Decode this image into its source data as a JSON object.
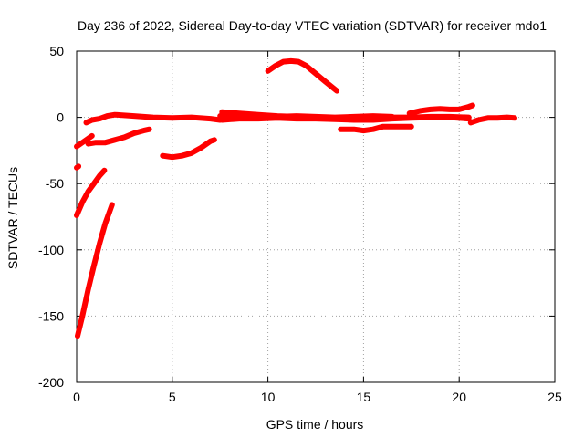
{
  "chart_data": {
    "type": "scatter",
    "title": "Day 236 of 2022, Sidereal Day-to-day VTEC variation (SDTVAR) for receiver mdo1",
    "xlabel": "GPS time / hours",
    "ylabel": "SDTVAR / TECUs",
    "xlim": [
      0,
      25
    ],
    "ylim": [
      -200,
      50
    ],
    "xticks": [
      0,
      5,
      10,
      15,
      20,
      25
    ],
    "yticks": [
      -200,
      -150,
      -100,
      -50,
      0,
      50
    ],
    "grid": true,
    "series_color": "#ff0000",
    "segments": [
      {
        "name": "arc-1",
        "points": [
          [
            0.05,
            -165
          ],
          [
            0.3,
            -150
          ],
          [
            0.6,
            -130
          ],
          [
            0.9,
            -112
          ],
          [
            1.2,
            -95
          ],
          [
            1.5,
            -80
          ],
          [
            1.85,
            -66
          ]
        ]
      },
      {
        "name": "arc-2",
        "points": [
          [
            0.0,
            -74
          ],
          [
            0.3,
            -64
          ],
          [
            0.6,
            -56
          ],
          [
            0.9,
            -50
          ],
          [
            1.2,
            -44
          ],
          [
            1.45,
            -40
          ]
        ]
      },
      {
        "name": "arc-3",
        "points": [
          [
            0.0,
            -38
          ],
          [
            0.1,
            -37
          ]
        ]
      },
      {
        "name": "arc-4",
        "points": [
          [
            0.0,
            -22
          ],
          [
            0.3,
            -19
          ],
          [
            0.6,
            -16
          ],
          [
            0.8,
            -14
          ]
        ]
      },
      {
        "name": "arc-5",
        "points": [
          [
            0.6,
            -20
          ],
          [
            1.0,
            -19
          ],
          [
            1.5,
            -19
          ],
          [
            2.0,
            -17
          ],
          [
            2.5,
            -15
          ],
          [
            3.0,
            -12
          ],
          [
            3.5,
            -10
          ],
          [
            3.8,
            -9
          ]
        ]
      },
      {
        "name": "arc-6",
        "points": [
          [
            0.5,
            -4
          ],
          [
            0.8,
            -2
          ],
          [
            1.2,
            -1
          ],
          [
            1.6,
            1
          ],
          [
            2.0,
            2
          ],
          [
            3.0,
            1
          ],
          [
            4.0,
            0
          ],
          [
            5.0,
            -0.5
          ],
          [
            6.0,
            0
          ],
          [
            7.0,
            -1
          ],
          [
            7.5,
            -2
          ]
        ]
      },
      {
        "name": "arc-7",
        "points": [
          [
            4.5,
            -29
          ],
          [
            5.0,
            -30
          ],
          [
            5.5,
            -29
          ],
          [
            6.0,
            -27
          ],
          [
            6.5,
            -23
          ],
          [
            7.0,
            -18
          ],
          [
            7.2,
            -17
          ]
        ]
      },
      {
        "name": "arc-8",
        "points": [
          [
            7.6,
            4
          ],
          [
            8.5,
            3
          ],
          [
            9.5,
            2
          ],
          [
            10.5,
            1
          ],
          [
            11.5,
            0.5
          ],
          [
            12.5,
            0
          ],
          [
            13.5,
            -0.5
          ],
          [
            14.5,
            -0.5
          ],
          [
            15.5,
            0
          ],
          [
            16.5,
            0
          ],
          [
            17.5,
            0
          ],
          [
            18.5,
            0.5
          ],
          [
            19.5,
            0.5
          ],
          [
            20.5,
            0
          ]
        ]
      },
      {
        "name": "arc-9",
        "points": [
          [
            7.6,
            -2
          ],
          [
            8.5,
            -1
          ],
          [
            9.5,
            -1
          ],
          [
            10.5,
            -0.5
          ],
          [
            11.5,
            -1
          ],
          [
            12.5,
            -1
          ],
          [
            13.5,
            -1.5
          ],
          [
            14.5,
            -2
          ],
          [
            15.5,
            -2
          ],
          [
            16.5,
            -1
          ],
          [
            17.5,
            -0.5
          ],
          [
            18.5,
            0
          ],
          [
            19.5,
            0
          ],
          [
            20.5,
            -1
          ]
        ]
      },
      {
        "name": "arc-10",
        "points": [
          [
            7.5,
            1
          ],
          [
            8.5,
            0
          ],
          [
            9.5,
            -0.5
          ],
          [
            10.5,
            0.5
          ],
          [
            11.5,
            1
          ],
          [
            12.5,
            0.5
          ],
          [
            13.5,
            0
          ],
          [
            14.5,
            0.5
          ],
          [
            15.5,
            1
          ],
          [
            16.5,
            0.5
          ]
        ]
      },
      {
        "name": "arc-11",
        "points": [
          [
            10.0,
            35
          ],
          [
            10.4,
            39
          ],
          [
            10.8,
            42
          ],
          [
            11.2,
            42.5
          ],
          [
            11.6,
            42
          ],
          [
            12.0,
            39
          ],
          [
            12.5,
            33
          ],
          [
            13.0,
            27
          ],
          [
            13.6,
            20
          ]
        ]
      },
      {
        "name": "arc-12",
        "points": [
          [
            13.8,
            -9
          ],
          [
            14.5,
            -9
          ],
          [
            15.0,
            -10
          ],
          [
            15.5,
            -9
          ],
          [
            16.0,
            -7
          ],
          [
            17.0,
            -7
          ],
          [
            17.5,
            -7
          ]
        ]
      },
      {
        "name": "arc-13",
        "points": [
          [
            17.4,
            3
          ],
          [
            18.0,
            5
          ],
          [
            18.5,
            6
          ],
          [
            19.0,
            6.5
          ],
          [
            19.5,
            6
          ],
          [
            20.0,
            6
          ],
          [
            20.5,
            8
          ],
          [
            20.7,
            9
          ]
        ]
      },
      {
        "name": "arc-14",
        "points": [
          [
            20.6,
            -4
          ],
          [
            21.0,
            -2
          ],
          [
            21.5,
            -0.5
          ],
          [
            22.0,
            -0.5
          ],
          [
            22.5,
            0
          ],
          [
            22.9,
            -0.5
          ]
        ]
      }
    ]
  }
}
